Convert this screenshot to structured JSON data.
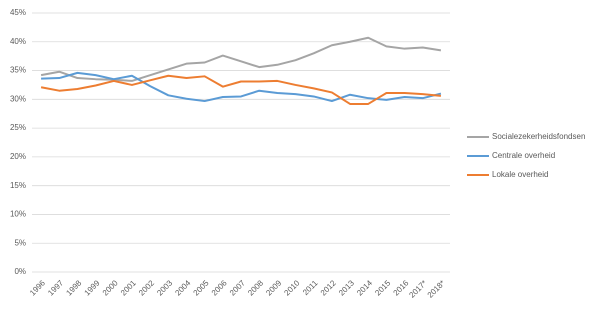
{
  "chart_data": {
    "type": "line",
    "categories": [
      "1996",
      "1997",
      "1998",
      "1999",
      "2000",
      "2001",
      "2002",
      "2003",
      "2004",
      "2005",
      "2006",
      "2007",
      "2008",
      "2009",
      "2010",
      "2011",
      "2012",
      "2013",
      "2014",
      "2015",
      "2016",
      "2017*",
      "2018*"
    ],
    "series": [
      {
        "name": "Socialezekerheidsfondsen",
        "color": "#a5a5a5",
        "values": [
          34.2,
          34.8,
          33.7,
          33.5,
          33.4,
          33.2,
          34.2,
          35.2,
          36.2,
          36.4,
          37.6,
          36.6,
          35.6,
          36.0,
          36.8,
          38.0,
          39.4,
          40.0,
          40.7,
          39.2,
          38.8,
          39.0,
          38.5
        ]
      },
      {
        "name": "Centrale overheid",
        "color": "#5b9bd5",
        "values": [
          33.6,
          33.7,
          34.6,
          34.2,
          33.5,
          34.1,
          32.3,
          30.7,
          30.1,
          29.7,
          30.4,
          30.5,
          31.5,
          31.1,
          30.9,
          30.5,
          29.7,
          30.8,
          30.2,
          29.9,
          30.4,
          30.2,
          31.0
        ]
      },
      {
        "name": "Lokale overheid",
        "color": "#ed7d31",
        "values": [
          32.1,
          31.5,
          31.8,
          32.4,
          33.2,
          32.5,
          33.3,
          34.1,
          33.7,
          34.0,
          32.2,
          33.1,
          33.1,
          33.2,
          32.5,
          31.9,
          31.2,
          29.2,
          29.2,
          31.1,
          31.1,
          30.9,
          30.6
        ]
      }
    ],
    "ylim": [
      0,
      45
    ],
    "yticks": [
      {
        "value": 0,
        "label": "0%"
      },
      {
        "value": 5,
        "label": "5%"
      },
      {
        "value": 10,
        "label": "10%"
      },
      {
        "value": 15,
        "label": "15%"
      },
      {
        "value": 20,
        "label": "20%"
      },
      {
        "value": 25,
        "label": "25%"
      },
      {
        "value": 30,
        "label": "30%"
      },
      {
        "value": 35,
        "label": "35%"
      },
      {
        "value": 40,
        "label": "40%"
      },
      {
        "value": 45,
        "label": "45%"
      }
    ],
    "grid": true,
    "legend": "right"
  }
}
